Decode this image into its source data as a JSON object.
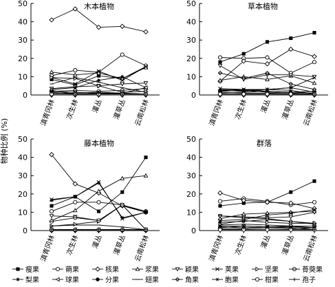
{
  "ylabel": "物种比例 (%)",
  "categories": [
    "滇青冈林",
    "次生林",
    "灌丛",
    "灌草丛",
    "云南松林"
  ],
  "yticks": [
    0,
    10,
    20,
    30,
    40,
    50
  ],
  "legend": [
    {
      "name": "瘦果",
      "marker": "square-filled"
    },
    {
      "name": "蒴果",
      "marker": "circle-open"
    },
    {
      "name": "核果",
      "marker": "diamond-open"
    },
    {
      "name": "浆果",
      "marker": "triangle-open"
    },
    {
      "name": "颖果",
      "marker": "triangle-down-open"
    },
    {
      "name": "荚果",
      "marker": "x"
    },
    {
      "name": "坚果",
      "marker": "triangle-right-open"
    },
    {
      "name": "蓇葖果",
      "marker": "circle-line"
    },
    {
      "name": "梨果",
      "marker": "star"
    },
    {
      "name": "球果",
      "marker": "triangle-left-open"
    },
    {
      "name": "分果",
      "marker": "circle-filled"
    },
    {
      "name": "翅果",
      "marker": "line"
    },
    {
      "name": "角果",
      "marker": "diamond-line"
    },
    {
      "name": "胞果",
      "marker": "asterisk"
    },
    {
      "name": "柑果",
      "marker": "circle-open"
    },
    {
      "name": "孢子",
      "marker": "plus"
    }
  ],
  "chart_data": [
    {
      "type": "line",
      "title": "木本植物",
      "categories": [
        "滇青冈林",
        "次生林",
        "灌丛",
        "灌草丛",
        "云南松林"
      ],
      "ylim": [
        0,
        50
      ],
      "series": [
        {
          "name": "瘦果",
          "values": [
            8.5,
            5.5,
            10.5,
            9.0,
            15.5
          ]
        },
        {
          "name": "蒴果",
          "values": [
            10.5,
            13.5,
            12.5,
            22.0,
            16.0
          ]
        },
        {
          "name": "核果",
          "values": [
            41.0,
            47.0,
            37.0,
            37.5,
            34.5
          ]
        },
        {
          "name": "浆果",
          "values": [
            12.5,
            11.0,
            12.0,
            9.0,
            15.0
          ]
        },
        {
          "name": "颖果",
          "values": [
            3.5,
            4.5,
            5.0,
            6.0,
            6.5
          ]
        },
        {
          "name": "荚果",
          "values": [
            9.5,
            6.0,
            13.0,
            8.0,
            15.5
          ]
        },
        {
          "name": "坚果",
          "values": [
            9.5,
            9.0,
            5.0,
            1.5,
            2.0
          ]
        },
        {
          "name": "蓇葖果",
          "values": [
            2.0,
            2.5,
            2.0,
            2.5,
            3.5
          ]
        },
        {
          "name": "梨果",
          "values": [
            3.0,
            4.0,
            8.0,
            10.0,
            4.0
          ]
        },
        {
          "name": "球果",
          "values": [
            1.0,
            1.0,
            1.5,
            1.0,
            4.0
          ]
        },
        {
          "name": "分果",
          "values": [
            0.0,
            0.0,
            0.0,
            0.0,
            0.0
          ]
        },
        {
          "name": "翅果",
          "values": [
            6.0,
            9.5,
            7.0,
            4.0,
            1.5
          ]
        },
        {
          "name": "角果",
          "values": [
            2.5,
            0.5,
            0.5,
            1.0,
            0.5
          ]
        },
        {
          "name": "胞果",
          "values": [
            2.0,
            1.5,
            1.0,
            1.0,
            0.5
          ]
        },
        {
          "name": "柑果",
          "values": [
            0.5,
            0.5,
            0.5,
            0.5,
            0.5
          ]
        },
        {
          "name": "孢子",
          "values": [
            1.5,
            0.5,
            1.0,
            0.5,
            0.5
          ]
        }
      ]
    },
    {
      "type": "line",
      "title": "草本植物",
      "categories": [
        "滇青冈林",
        "次生林",
        "灌丛",
        "灌草丛",
        "云南松林"
      ],
      "ylim": [
        0,
        50
      ],
      "series": [
        {
          "name": "瘦果",
          "values": [
            18.0,
            22.5,
            29.0,
            31.0,
            34.0
          ]
        },
        {
          "name": "蒴果",
          "values": [
            20.5,
            20.0,
            20.5,
            12.0,
            18.0
          ]
        },
        {
          "name": "核果",
          "values": [
            7.5,
            18.5,
            17.0,
            25.0,
            21.0
          ]
        },
        {
          "name": "浆果",
          "values": [
            8.0,
            10.0,
            8.5,
            10.5,
            6.5
          ]
        },
        {
          "name": "颖果",
          "values": [
            16.0,
            8.5,
            11.0,
            11.0,
            10.0
          ]
        },
        {
          "name": "荚果",
          "values": [
            3.5,
            3.0,
            3.0,
            4.0,
            9.5
          ]
        },
        {
          "name": "坚果",
          "values": [
            1.0,
            1.5,
            2.0,
            1.5,
            2.0
          ]
        },
        {
          "name": "蓇葖果",
          "values": [
            2.0,
            2.5,
            1.5,
            1.0,
            0.5
          ]
        },
        {
          "name": "梨果",
          "values": [
            2.5,
            2.0,
            3.0,
            4.0,
            1.5
          ]
        },
        {
          "name": "球果",
          "values": [
            0.5,
            0.5,
            0.5,
            0.5,
            0.5
          ]
        },
        {
          "name": "分果",
          "values": [
            0.0,
            0.0,
            0.0,
            0.0,
            0.0
          ]
        },
        {
          "name": "翅果",
          "values": [
            1.5,
            1.0,
            1.0,
            0.5,
            0.5
          ]
        },
        {
          "name": "角果",
          "values": [
            12.0,
            9.0,
            12.0,
            6.0,
            3.0
          ]
        },
        {
          "name": "胞果",
          "values": [
            2.5,
            3.0,
            2.0,
            1.5,
            1.0
          ]
        },
        {
          "name": "柑果",
          "values": [
            0.5,
            0.5,
            0.5,
            0.5,
            0.5
          ]
        },
        {
          "name": "孢子",
          "values": [
            3.0,
            2.5,
            3.0,
            2.5,
            0.5
          ]
        }
      ]
    },
    {
      "type": "line",
      "title": "藤本植物",
      "categories": [
        "滇青冈林",
        "次生林",
        "灌丛",
        "灌草丛",
        "云南松林"
      ],
      "ylim": [
        0,
        50
      ],
      "series": [
        {
          "name": "瘦果",
          "values": [
            13.5,
            18.5,
            10.5,
            21.0,
            40.0
          ]
        },
        {
          "name": "蒴果",
          "values": [
            10.5,
            15.5,
            15.5,
            14.0,
            10.5
          ]
        },
        {
          "name": "核果",
          "values": [
            41.5,
            25.5,
            20.5,
            13.5,
            10.0
          ]
        },
        {
          "name": "浆果",
          "values": [
            5.5,
            11.0,
            21.5,
            28.5,
            30.0
          ]
        },
        {
          "name": "颖果",
          "values": [
            8.0,
            7.5,
            5.5,
            14.0,
            10.0
          ]
        },
        {
          "name": "荚果",
          "values": [
            17.0,
            18.5,
            26.5,
            6.5,
            10.0
          ]
        },
        {
          "name": "坚果",
          "values": [
            2.5,
            3.5,
            5.0,
            14.0,
            0.5
          ]
        },
        {
          "name": "蓇葖果",
          "values": [
            5.0,
            7.0,
            5.5,
            14.0,
            0.5
          ]
        },
        {
          "name": "梨果",
          "values": [
            16.5,
            18.5,
            26.0,
            7.0,
            10.0
          ]
        },
        {
          "name": "球果",
          "values": [
            0.5,
            0.5,
            0.5,
            0.5,
            0.5
          ]
        },
        {
          "name": "分果",
          "values": [
            0.0,
            0.0,
            0.0,
            0.0,
            0.0
          ]
        },
        {
          "name": "翅果",
          "values": [
            2.5,
            3.0,
            3.0,
            2.0,
            0.5
          ]
        },
        {
          "name": "角果",
          "values": [
            0.5,
            0.5,
            0.5,
            0.5,
            0.5
          ]
        },
        {
          "name": "胞果",
          "values": [
            0.5,
            0.5,
            0.5,
            0.5,
            0.5
          ]
        },
        {
          "name": "柑果",
          "values": [
            0.5,
            0.5,
            0.5,
            0.5,
            0.5
          ]
        },
        {
          "name": "孢子",
          "values": [
            0.5,
            0.5,
            0.5,
            0.5,
            0.5
          ]
        }
      ]
    },
    {
      "type": "line",
      "title": "群落",
      "categories": [
        "滇青冈林",
        "次生林",
        "灌丛",
        "灌草丛",
        "云南松林"
      ],
      "ylim": [
        0,
        50
      ],
      "series": [
        {
          "name": "瘦果",
          "values": [
            13.5,
            15.0,
            15.5,
            21.0,
            27.0
          ]
        },
        {
          "name": "蒴果",
          "values": [
            16.0,
            17.5,
            16.0,
            14.0,
            15.5
          ]
        },
        {
          "name": "核果",
          "values": [
            20.5,
            16.5,
            15.5,
            15.0,
            12.0
          ]
        },
        {
          "name": "浆果",
          "values": [
            6.5,
            9.0,
            9.5,
            10.0,
            10.5
          ]
        },
        {
          "name": "颖果",
          "values": [
            8.0,
            7.5,
            7.0,
            7.5,
            10.0
          ]
        },
        {
          "name": "荚果",
          "values": [
            5.5,
            6.0,
            8.5,
            9.5,
            11.5
          ]
        },
        {
          "name": "坚果",
          "values": [
            3.5,
            5.5,
            4.5,
            4.0,
            4.0
          ]
        },
        {
          "name": "蓇葖果",
          "values": [
            1.5,
            2.5,
            2.0,
            2.5,
            2.5
          ]
        },
        {
          "name": "梨果",
          "values": [
            4.5,
            5.0,
            6.0,
            5.0,
            3.5
          ]
        },
        {
          "name": "球果",
          "values": [
            1.0,
            1.0,
            1.5,
            1.0,
            1.5
          ]
        },
        {
          "name": "分果",
          "values": [
            0.5,
            0.5,
            0.5,
            0.5,
            0.5
          ]
        },
        {
          "name": "翅果",
          "values": [
            3.0,
            3.5,
            3.0,
            2.5,
            1.5
          ]
        },
        {
          "name": "角果",
          "values": [
            8.0,
            7.0,
            6.5,
            5.0,
            4.0
          ]
        },
        {
          "name": "胞果",
          "values": [
            2.5,
            2.5,
            2.0,
            2.0,
            1.5
          ]
        },
        {
          "name": "柑果",
          "values": [
            0.5,
            0.5,
            0.5,
            0.5,
            0.5
          ]
        },
        {
          "name": "孢子",
          "values": [
            2.0,
            1.5,
            2.0,
            1.5,
            0.5
          ]
        }
      ]
    }
  ]
}
